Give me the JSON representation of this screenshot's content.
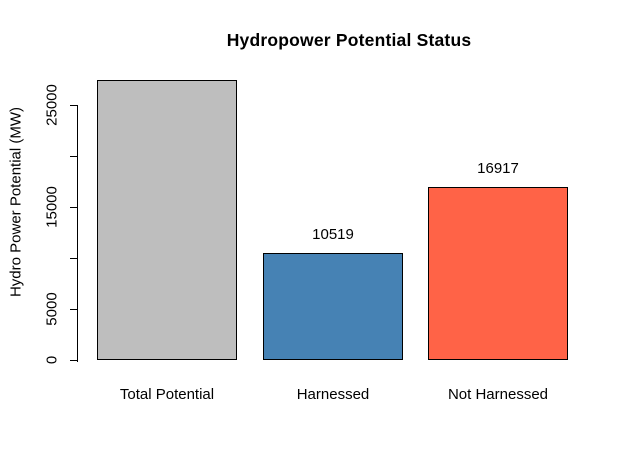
{
  "page": {
    "background": "#FFFFFF",
    "text_color": "#000000"
  },
  "chart_data": {
    "type": "bar",
    "title": "Hydropower Potential Status",
    "xlabel": "",
    "ylabel": "Hydro Power Potential (MW)",
    "categories": [
      "Total Potential",
      "Harnessed",
      "Not Harnessed"
    ],
    "values": [
      27436,
      10519,
      16917
    ],
    "bar_value_labels": [
      "",
      "10519",
      "16917"
    ],
    "bar_colors": [
      "#BEBEBE",
      "#4682B4",
      "#FF6347"
    ],
    "bar_border_color": "#000000",
    "y_axis": {
      "range": [
        0,
        25000
      ],
      "ticks": [
        0,
        5000,
        10000,
        15000,
        20000,
        25000
      ],
      "tick_labels": [
        "0",
        "5000",
        "",
        "15000",
        "",
        "25000"
      ]
    },
    "grid": false,
    "legend": "none"
  }
}
